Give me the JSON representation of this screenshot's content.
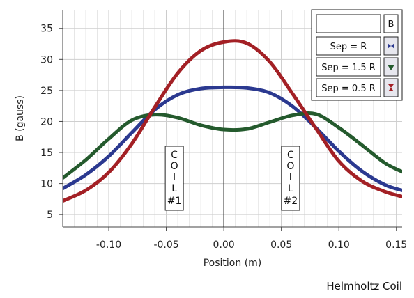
{
  "chart_data": {
    "type": "line",
    "title": "Helmholtz Coil",
    "xlabel": "Position (m)",
    "ylabel": "B (gauss)",
    "xlim": [
      -0.14,
      0.155
    ],
    "ylim": [
      3,
      38
    ],
    "xticks": [
      -0.1,
      -0.05,
      0.0,
      0.05,
      0.1,
      0.15
    ],
    "xtick_labels": [
      "-0.10",
      "-0.05",
      "0.00",
      "0.05",
      "0.10",
      "0.15"
    ],
    "yticks": [
      5,
      10,
      15,
      20,
      25,
      30,
      35
    ],
    "ytick_labels": [
      "5",
      "10",
      "15",
      "20",
      "25",
      "30",
      "35"
    ],
    "grid": true,
    "legend_placement": "top-right",
    "legend_header": "B",
    "series": [
      {
        "name": "Sep = R",
        "color": "#2b3990",
        "x": [
          -0.14,
          -0.12,
          -0.1,
          -0.08,
          -0.06,
          -0.04,
          -0.02,
          0.0,
          0.02,
          0.04,
          0.06,
          0.08,
          0.1,
          0.12,
          0.14,
          0.155
        ],
        "y": [
          9.2,
          11.4,
          14.4,
          18.2,
          21.9,
          24.3,
          25.3,
          25.5,
          25.4,
          24.6,
          22.4,
          19.0,
          15.2,
          12.0,
          9.8,
          8.9
        ]
      },
      {
        "name": "Sep = 1.5 R",
        "color": "#245a2d",
        "x": [
          -0.14,
          -0.12,
          -0.1,
          -0.08,
          -0.06,
          -0.04,
          -0.02,
          0.0,
          0.02,
          0.04,
          0.06,
          0.08,
          0.1,
          0.12,
          0.14,
          0.155
        ],
        "y": [
          10.9,
          13.8,
          17.2,
          20.2,
          21.1,
          20.6,
          19.4,
          18.7,
          18.8,
          19.9,
          21.0,
          21.2,
          19.0,
          16.2,
          13.3,
          11.9
        ]
      },
      {
        "name": "Sep = 0.5 R",
        "color": "#a32025",
        "x": [
          -0.14,
          -0.12,
          -0.1,
          -0.08,
          -0.06,
          -0.04,
          -0.02,
          0.0,
          0.02,
          0.04,
          0.06,
          0.08,
          0.1,
          0.12,
          0.14,
          0.155
        ],
        "y": [
          7.2,
          8.9,
          11.8,
          16.4,
          22.3,
          27.8,
          31.4,
          32.8,
          32.6,
          29.6,
          24.4,
          18.9,
          13.6,
          10.4,
          8.7,
          7.9
        ]
      }
    ],
    "annotations": [
      {
        "letters": [
          "C",
          "O",
          "I",
          "L"
        ],
        "label": "#1",
        "x": -0.043
      },
      {
        "letters": [
          "C",
          "O",
          "I",
          "L"
        ],
        "label": "#2",
        "x": 0.058
      }
    ]
  }
}
